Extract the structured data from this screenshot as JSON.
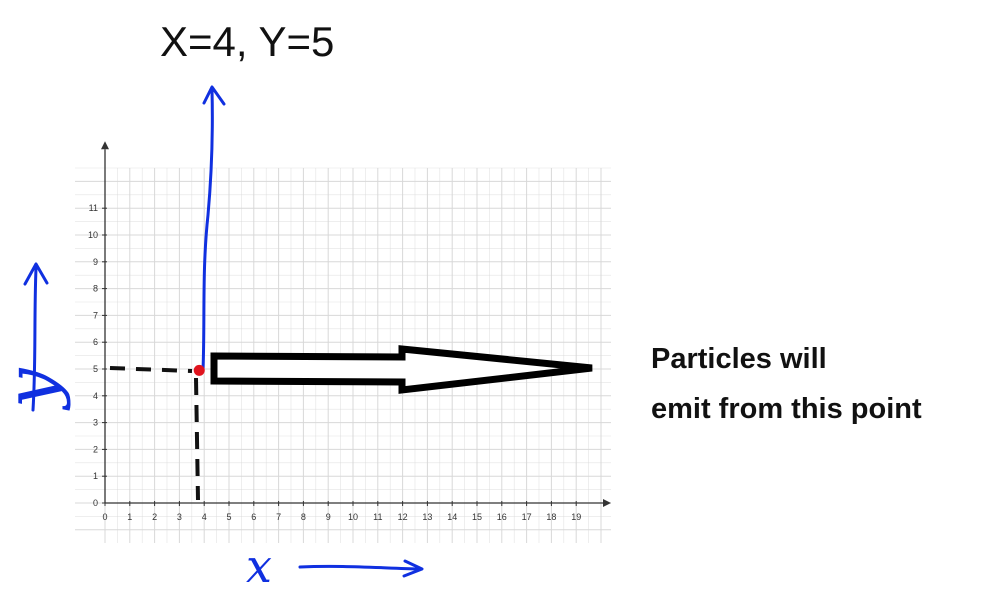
{
  "title": "X=4, Y=5",
  "annotation": {
    "line1": "Particles will",
    "line2": "emit from this point"
  },
  "hand_labels": {
    "x": "x",
    "y": "y"
  },
  "colors": {
    "point": "#e0141e",
    "handwriting": "#1030e0",
    "grid": "#d8d8d8",
    "ink": "#111111"
  },
  "chart_data": {
    "type": "scatter",
    "x_ticks": [
      "0",
      "1",
      "2",
      "3",
      "4",
      "5",
      "6",
      "7",
      "8",
      "9",
      "10",
      "11",
      "12",
      "13",
      "14",
      "15",
      "16",
      "17",
      "18",
      "19"
    ],
    "y_ticks": [
      "0",
      "1",
      "2",
      "3",
      "4",
      "5",
      "6",
      "7",
      "8",
      "9",
      "10",
      "11"
    ],
    "xlim": [
      0,
      20
    ],
    "ylim": [
      0,
      12
    ],
    "grid": true,
    "points": [
      {
        "x": 3.8,
        "y": 4.95
      }
    ]
  }
}
